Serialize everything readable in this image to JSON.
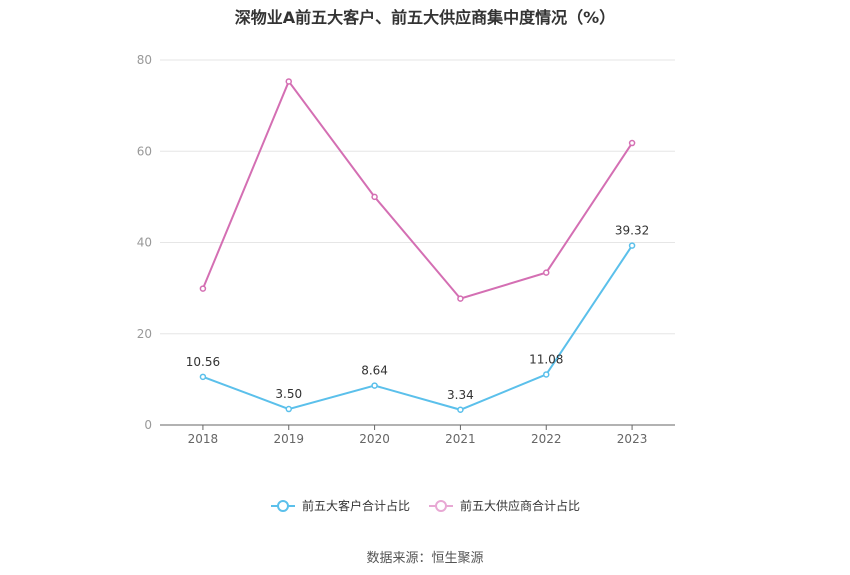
{
  "chart_data": {
    "type": "line",
    "title": "深物业A前五大客户、前五大供应商集中度情况（%）",
    "categories": [
      "2018",
      "2019",
      "2020",
      "2021",
      "2022",
      "2023"
    ],
    "ylim": [
      0,
      80
    ],
    "yticks": [
      "0",
      "20",
      "40",
      "60",
      "80"
    ],
    "grid": true,
    "legend_position": "bottom",
    "series": [
      {
        "name": "前五大客户合计占比",
        "values": [
          10.56,
          3.5,
          8.64,
          3.34,
          11.08,
          39.32
        ],
        "labels": [
          "10.56",
          "3.50",
          "8.64",
          "3.34",
          "11.08",
          "39.32"
        ],
        "color": "#5bc0eb"
      },
      {
        "name": "前五大供应商合计占比",
        "values": [
          29.9,
          75.3,
          50.0,
          27.7,
          33.4,
          61.8
        ],
        "color": "#d46fb3"
      }
    ]
  },
  "source": "数据来源：恒生聚源"
}
